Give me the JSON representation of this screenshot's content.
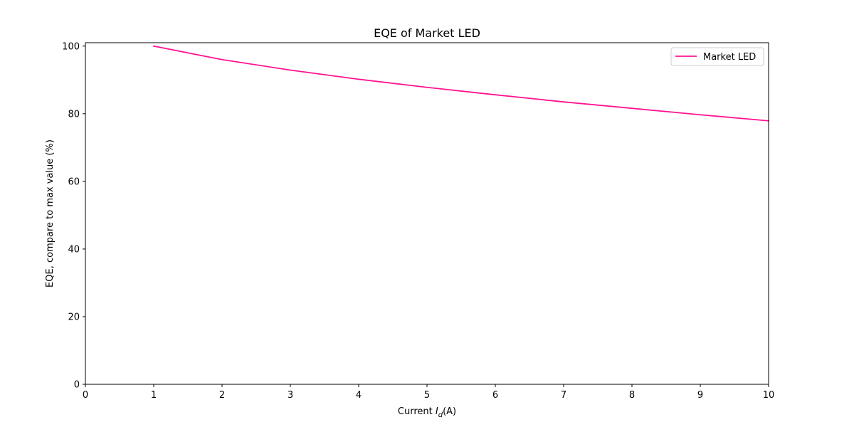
{
  "chart_data": {
    "type": "line",
    "title": "EQE of Market LED",
    "xlabel_prefix": "Current ",
    "xlabel_var": "I",
    "xlabel_sub": "d",
    "xlabel_suffix": "(A)",
    "ylabel": "EQE, compare to max value (%)",
    "xlim": [
      0,
      10
    ],
    "ylim": [
      0,
      101
    ],
    "x_ticks": [
      "0",
      "1",
      "2",
      "3",
      "4",
      "5",
      "6",
      "7",
      "8",
      "9",
      "10"
    ],
    "y_ticks": [
      "0",
      "20",
      "40",
      "60",
      "80",
      "100"
    ],
    "grid": false,
    "legend_position": "top-right",
    "series": [
      {
        "name": "Market LED",
        "color": "#ff1493",
        "x": [
          1,
          2,
          3,
          4,
          5,
          6,
          7,
          8,
          9,
          10
        ],
        "y": [
          100,
          96,
          92.9,
          90.2,
          87.8,
          85.6,
          83.5,
          81.6,
          79.7,
          77.9
        ]
      }
    ]
  }
}
